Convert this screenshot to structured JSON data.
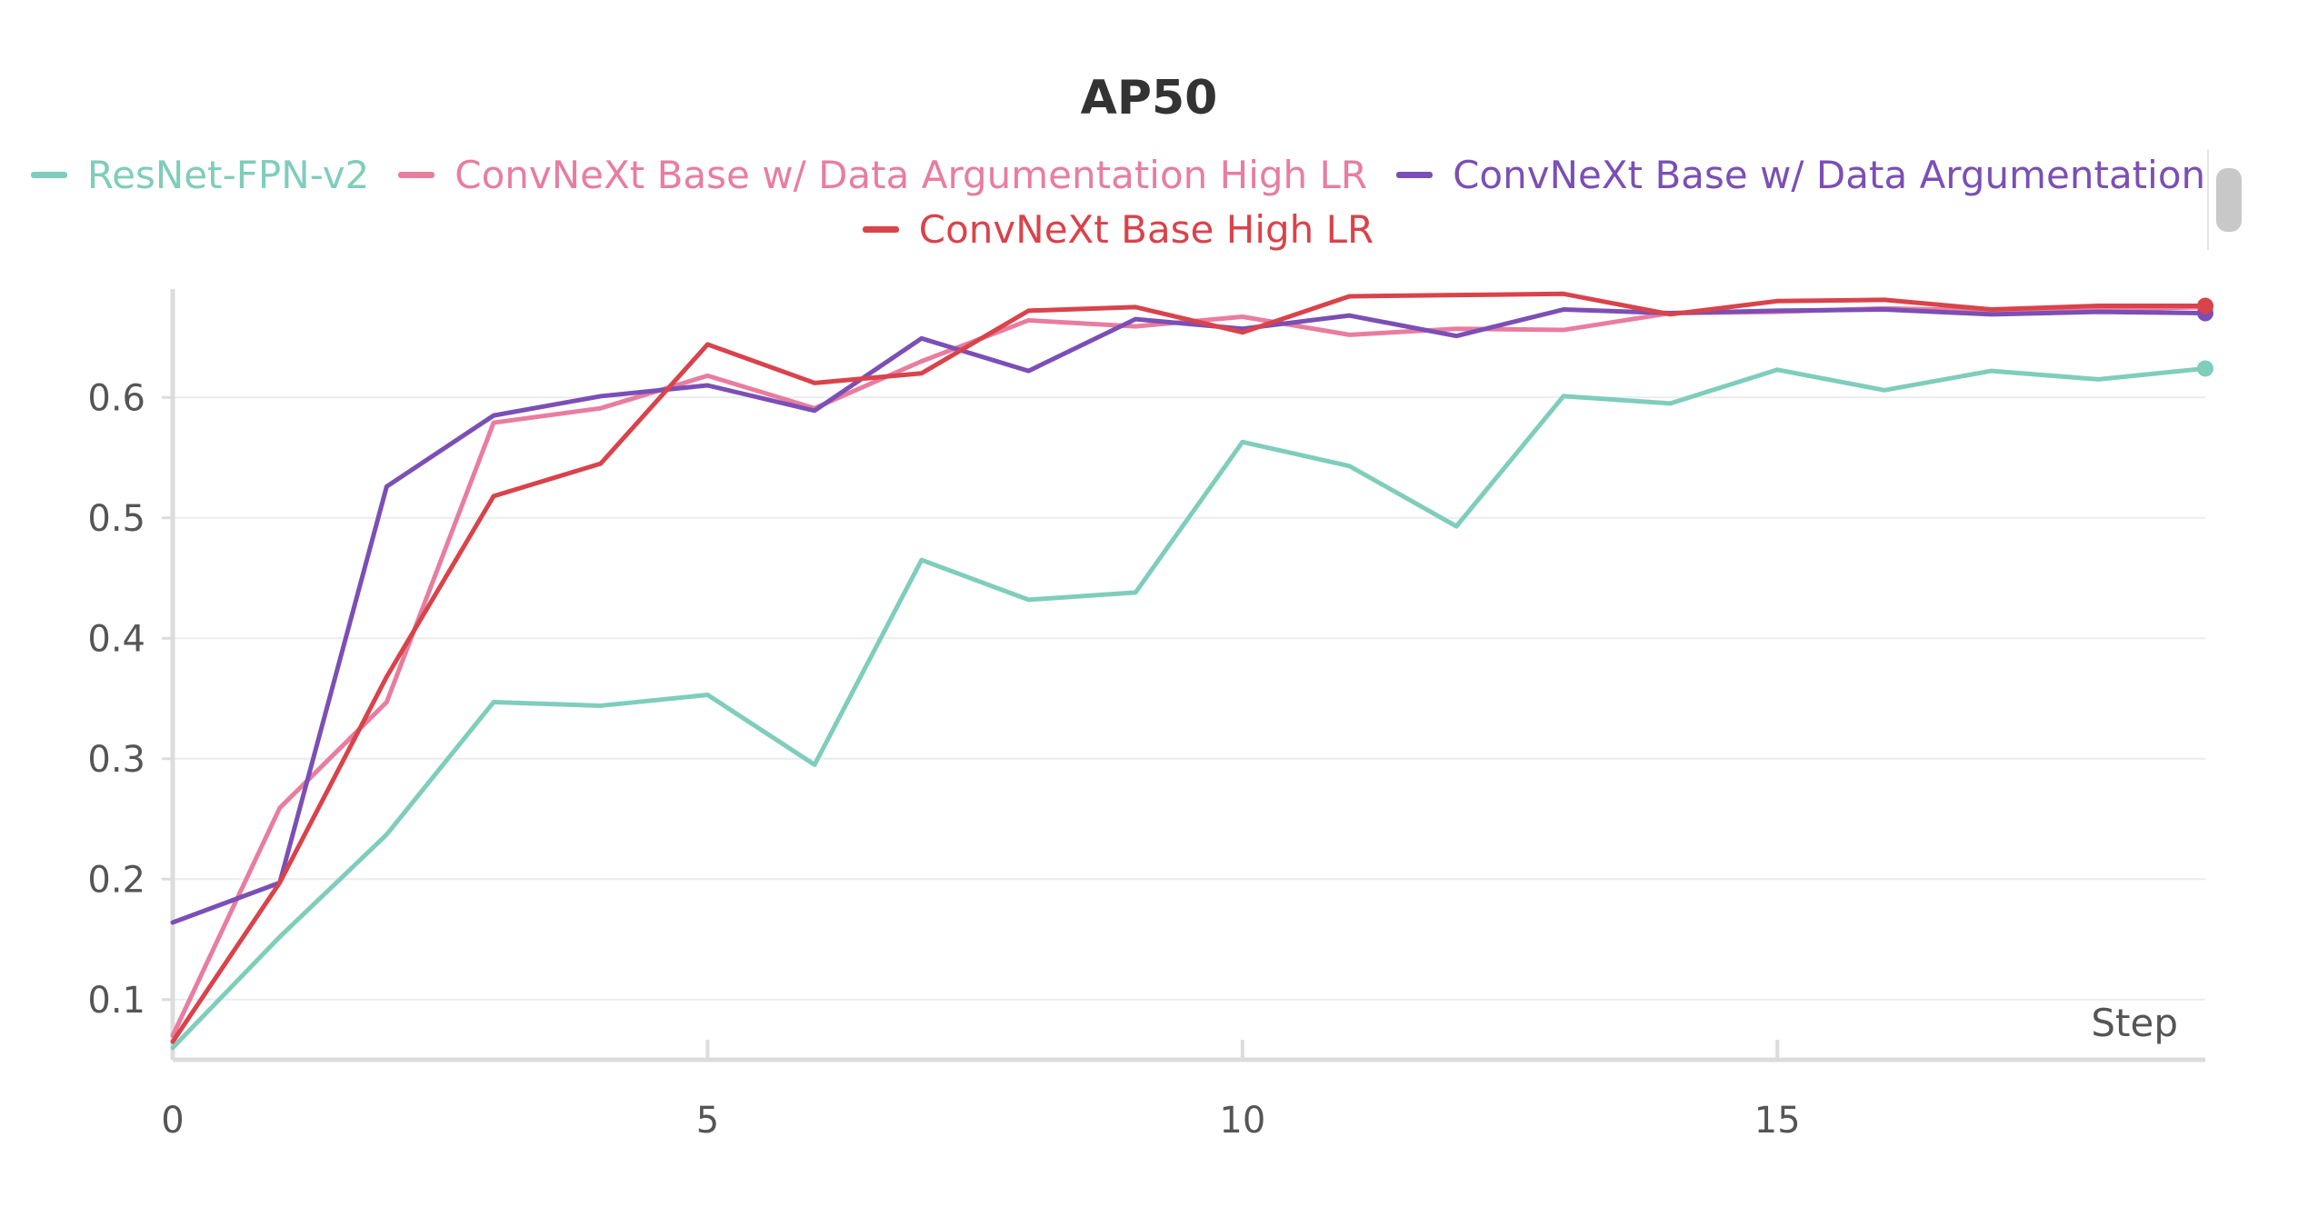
{
  "chart_data": {
    "type": "line",
    "title": "AP50",
    "xlabel": "Step",
    "ylabel": "",
    "xlim": [
      0,
      19
    ],
    "ylim": [
      0.05,
      0.69
    ],
    "x_ticks": [
      "0",
      "5",
      "10",
      "15"
    ],
    "y_ticks": [
      "0.1",
      "0.2",
      "0.3",
      "0.4",
      "0.5",
      "0.6"
    ],
    "grid": true,
    "legend_position": "top",
    "x": [
      0,
      1,
      2,
      3,
      4,
      5,
      6,
      7,
      8,
      9,
      10,
      11,
      12,
      13,
      14,
      15,
      16,
      17,
      18,
      19
    ],
    "series": [
      {
        "name": "ResNet-FPN-v2",
        "color": "#7fcdbb",
        "values": [
          0.06,
          0.152,
          0.237,
          0.347,
          0.344,
          0.353,
          0.295,
          0.465,
          0.432,
          0.438,
          0.563,
          0.543,
          0.493,
          0.601,
          0.595,
          0.623,
          0.606,
          0.622,
          0.615,
          0.624
        ]
      },
      {
        "name": "ConvNeXt Base w/ Data Argumentation High LR",
        "color": "#e87da0",
        "values": [
          0.07,
          0.259,
          0.347,
          0.579,
          0.591,
          0.618,
          0.591,
          0.63,
          0.664,
          0.659,
          0.667,
          0.652,
          0.657,
          0.656,
          0.67,
          0.671,
          0.674,
          0.672,
          0.673,
          0.675
        ]
      },
      {
        "name": "ConvNeXt Base w/ Data Argumentation",
        "color": "#7b4fb5",
        "values": [
          0.164,
          0.197,
          0.526,
          0.585,
          0.601,
          0.61,
          0.589,
          0.649,
          0.622,
          0.665,
          0.657,
          0.668,
          0.651,
          0.673,
          0.67,
          0.672,
          0.673,
          0.669,
          0.671,
          0.67
        ]
      },
      {
        "name": "ConvNeXt Base High LR",
        "color": "#d9434b",
        "values": [
          0.065,
          0.197,
          0.368,
          0.518,
          0.545,
          0.644,
          0.612,
          0.62,
          0.672,
          0.675,
          0.654,
          0.684,
          0.685,
          0.686,
          0.669,
          0.68,
          0.681,
          0.673,
          0.676,
          0.676
        ]
      }
    ]
  }
}
